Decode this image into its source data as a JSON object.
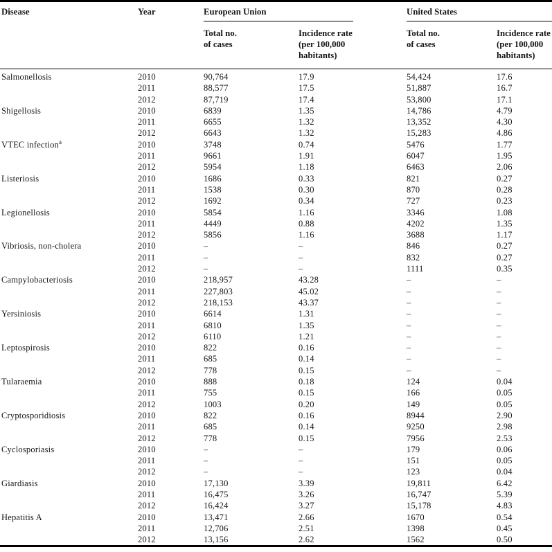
{
  "header": {
    "disease": "Disease",
    "year": "Year",
    "eu_group": "European Union",
    "us_group": "United States",
    "total_line1": "Total no.",
    "total_line2": "of cases",
    "rate_line1": "Incidence rate",
    "rate_line2": "(per 100,000",
    "rate_line3": "habitants)"
  },
  "colors": {
    "background": "#ffffff",
    "text": "#161616",
    "rule": "#000000"
  },
  "dash": "–",
  "diseases": [
    {
      "name": "Salmonellosis",
      "note": "",
      "rows": [
        {
          "year": "2010",
          "eu_cases": "90,764",
          "eu_rate": "17.9",
          "us_cases": "54,424",
          "us_rate": "17.6"
        },
        {
          "year": "2011",
          "eu_cases": "88,577",
          "eu_rate": "17.5",
          "us_cases": "51,887",
          "us_rate": "16.7"
        },
        {
          "year": "2012",
          "eu_cases": "87,719",
          "eu_rate": "17.4",
          "us_cases": "53,800",
          "us_rate": "17.1"
        }
      ]
    },
    {
      "name": "Shigellosis",
      "note": "",
      "rows": [
        {
          "year": "2010",
          "eu_cases": "6839",
          "eu_rate": "1.35",
          "us_cases": "14,786",
          "us_rate": "4.79"
        },
        {
          "year": "2011",
          "eu_cases": "6655",
          "eu_rate": "1.32",
          "us_cases": "13,352",
          "us_rate": "4.30"
        },
        {
          "year": "2012",
          "eu_cases": "6643",
          "eu_rate": "1.32",
          "us_cases": "15,283",
          "us_rate": "4.86"
        }
      ]
    },
    {
      "name": "VTEC infection",
      "note": "a",
      "rows": [
        {
          "year": "2010",
          "eu_cases": "3748",
          "eu_rate": "0.74",
          "us_cases": "5476",
          "us_rate": "1.77"
        },
        {
          "year": "2011",
          "eu_cases": "9661",
          "eu_rate": "1.91",
          "us_cases": "6047",
          "us_rate": "1.95"
        },
        {
          "year": "2012",
          "eu_cases": "5954",
          "eu_rate": "1.18",
          "us_cases": "6463",
          "us_rate": "2.06"
        }
      ]
    },
    {
      "name": "Listeriosis",
      "note": "",
      "rows": [
        {
          "year": "2010",
          "eu_cases": "1686",
          "eu_rate": "0.33",
          "us_cases": "821",
          "us_rate": "0.27"
        },
        {
          "year": "2011",
          "eu_cases": "1538",
          "eu_rate": "0.30",
          "us_cases": "870",
          "us_rate": "0.28"
        },
        {
          "year": "2012",
          "eu_cases": "1692",
          "eu_rate": "0.34",
          "us_cases": "727",
          "us_rate": "0.23"
        }
      ]
    },
    {
      "name": "Legionellosis",
      "note": "",
      "rows": [
        {
          "year": "2010",
          "eu_cases": "5854",
          "eu_rate": "1.16",
          "us_cases": "3346",
          "us_rate": "1.08"
        },
        {
          "year": "2011",
          "eu_cases": "4449",
          "eu_rate": "0.88",
          "us_cases": "4202",
          "us_rate": "1.35"
        },
        {
          "year": "2012",
          "eu_cases": "5856",
          "eu_rate": "1.16",
          "us_cases": "3688",
          "us_rate": "1.17"
        }
      ]
    },
    {
      "name": "Vibriosis, non-cholera",
      "note": "",
      "rows": [
        {
          "year": "2010",
          "eu_cases": "–",
          "eu_rate": "–",
          "us_cases": "846",
          "us_rate": "0.27"
        },
        {
          "year": "2011",
          "eu_cases": "–",
          "eu_rate": "–",
          "us_cases": "832",
          "us_rate": "0.27"
        },
        {
          "year": "2012",
          "eu_cases": "–",
          "eu_rate": "–",
          "us_cases": "1111",
          "us_rate": "0.35"
        }
      ]
    },
    {
      "name": "Campylobacteriosis",
      "note": "",
      "rows": [
        {
          "year": "2010",
          "eu_cases": "218,957",
          "eu_rate": "43.28",
          "us_cases": "–",
          "us_rate": "–"
        },
        {
          "year": "2011",
          "eu_cases": "227,803",
          "eu_rate": "45.02",
          "us_cases": "–",
          "us_rate": "–"
        },
        {
          "year": "2012",
          "eu_cases": "218,153",
          "eu_rate": "43.37",
          "us_cases": "–",
          "us_rate": "–"
        }
      ]
    },
    {
      "name": "Yersiniosis",
      "note": "",
      "rows": [
        {
          "year": "2010",
          "eu_cases": "6614",
          "eu_rate": "1.31",
          "us_cases": "–",
          "us_rate": "–"
        },
        {
          "year": "2011",
          "eu_cases": "6810",
          "eu_rate": "1.35",
          "us_cases": "–",
          "us_rate": "–"
        },
        {
          "year": "2012",
          "eu_cases": "6110",
          "eu_rate": "1.21",
          "us_cases": "–",
          "us_rate": "–"
        }
      ]
    },
    {
      "name": "Leptospirosis",
      "note": "",
      "rows": [
        {
          "year": "2010",
          "eu_cases": "822",
          "eu_rate": "0.16",
          "us_cases": "–",
          "us_rate": "–"
        },
        {
          "year": "2011",
          "eu_cases": "685",
          "eu_rate": "0.14",
          "us_cases": "–",
          "us_rate": "–"
        },
        {
          "year": "2012",
          "eu_cases": "778",
          "eu_rate": "0.15",
          "us_cases": "–",
          "us_rate": "–"
        }
      ]
    },
    {
      "name": "Tularaemia",
      "note": "",
      "rows": [
        {
          "year": "2010",
          "eu_cases": "888",
          "eu_rate": "0.18",
          "us_cases": "124",
          "us_rate": "0.04"
        },
        {
          "year": "2011",
          "eu_cases": "755",
          "eu_rate": "0.15",
          "us_cases": "166",
          "us_rate": "0.05"
        },
        {
          "year": "2012",
          "eu_cases": "1003",
          "eu_rate": "0.20",
          "us_cases": "149",
          "us_rate": "0.05"
        }
      ]
    },
    {
      "name": "Cryptosporidiosis",
      "note": "",
      "rows": [
        {
          "year": "2010",
          "eu_cases": "822",
          "eu_rate": "0.16",
          "us_cases": "8944",
          "us_rate": "2.90"
        },
        {
          "year": "2011",
          "eu_cases": "685",
          "eu_rate": "0.14",
          "us_cases": "9250",
          "us_rate": "2.98"
        },
        {
          "year": "2012",
          "eu_cases": "778",
          "eu_rate": "0.15",
          "us_cases": "7956",
          "us_rate": "2.53"
        }
      ]
    },
    {
      "name": "Cyclosporiasis",
      "note": "",
      "rows": [
        {
          "year": "2010",
          "eu_cases": "–",
          "eu_rate": "–",
          "us_cases": "179",
          "us_rate": "0.06"
        },
        {
          "year": "2011",
          "eu_cases": "–",
          "eu_rate": "–",
          "us_cases": "151",
          "us_rate": "0.05"
        },
        {
          "year": "2012",
          "eu_cases": "–",
          "eu_rate": "–",
          "us_cases": "123",
          "us_rate": "0.04"
        }
      ]
    },
    {
      "name": "Giardiasis",
      "note": "",
      "rows": [
        {
          "year": "2010",
          "eu_cases": "17,130",
          "eu_rate": "3.39",
          "us_cases": "19,811",
          "us_rate": "6.42"
        },
        {
          "year": "2011",
          "eu_cases": "16,475",
          "eu_rate": "3.26",
          "us_cases": "16,747",
          "us_rate": "5.39"
        },
        {
          "year": "2012",
          "eu_cases": "16,424",
          "eu_rate": "3.27",
          "us_cases": "15,178",
          "us_rate": "4.83"
        }
      ]
    },
    {
      "name": "Hepatitis A",
      "note": "",
      "rows": [
        {
          "year": "2010",
          "eu_cases": "13,471",
          "eu_rate": "2.66",
          "us_cases": "1670",
          "us_rate": "0.54"
        },
        {
          "year": "2011",
          "eu_cases": "12,706",
          "eu_rate": "2.51",
          "us_cases": "1398",
          "us_rate": "0.45"
        },
        {
          "year": "2012",
          "eu_cases": "13,156",
          "eu_rate": "2.62",
          "us_cases": "1562",
          "us_rate": "0.50"
        }
      ]
    }
  ]
}
